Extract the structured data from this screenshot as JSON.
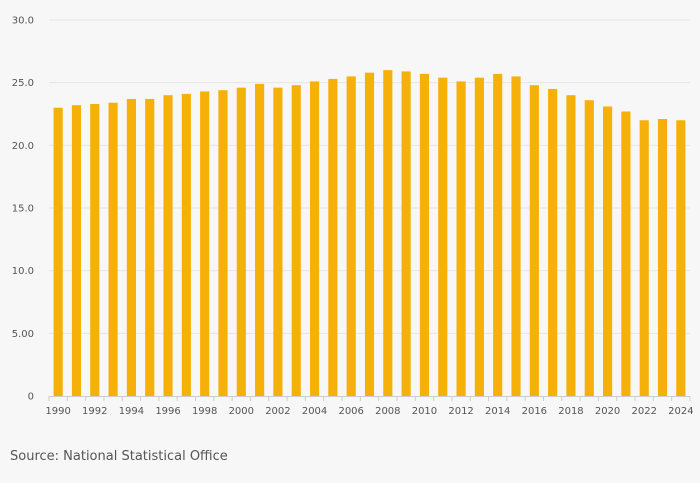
{
  "chart_data": {
    "type": "bar",
    "title": "",
    "xlabel": "",
    "ylabel": "",
    "categories": [
      "1990",
      "1991",
      "1992",
      "1993",
      "1994",
      "1995",
      "1996",
      "1997",
      "1998",
      "1999",
      "2000",
      "2001",
      "2002",
      "2003",
      "2004",
      "2005",
      "2006",
      "2007",
      "2008",
      "2009",
      "2010",
      "2011",
      "2012",
      "2013",
      "2014",
      "2015",
      "2016",
      "2017",
      "2018",
      "2019",
      "2020",
      "2021",
      "2022",
      "2023",
      "2024"
    ],
    "x_tick_labels": [
      "1990",
      "1992",
      "1994",
      "1996",
      "1998",
      "2000",
      "2002",
      "2004",
      "2006",
      "2008",
      "2010",
      "2012",
      "2014",
      "2016",
      "2018",
      "2020",
      "2022",
      "2024"
    ],
    "values": [
      23.0,
      23.2,
      23.3,
      23.4,
      23.7,
      23.7,
      24.0,
      24.1,
      24.3,
      24.4,
      24.6,
      24.9,
      24.6,
      24.8,
      25.1,
      25.3,
      25.5,
      25.8,
      26.0,
      25.9,
      25.7,
      25.4,
      25.1,
      25.4,
      25.7,
      25.5,
      24.8,
      24.5,
      24.0,
      23.6,
      23.1,
      22.7,
      22.0,
      22.1,
      22.0
    ],
    "ylim": [
      0,
      30
    ],
    "y_ticks": [
      0,
      5,
      10,
      15,
      20,
      25,
      30
    ],
    "y_tick_labels": [
      "0",
      "5.00",
      "10.0",
      "15.0",
      "20.0",
      "25.0",
      "30.0"
    ],
    "grid": true,
    "colors": {
      "bar": "#f5b00a",
      "grid": "#e6e6e6",
      "axis": "#cccccc"
    }
  },
  "footer": {
    "source": "Source: National Statistical Office"
  }
}
